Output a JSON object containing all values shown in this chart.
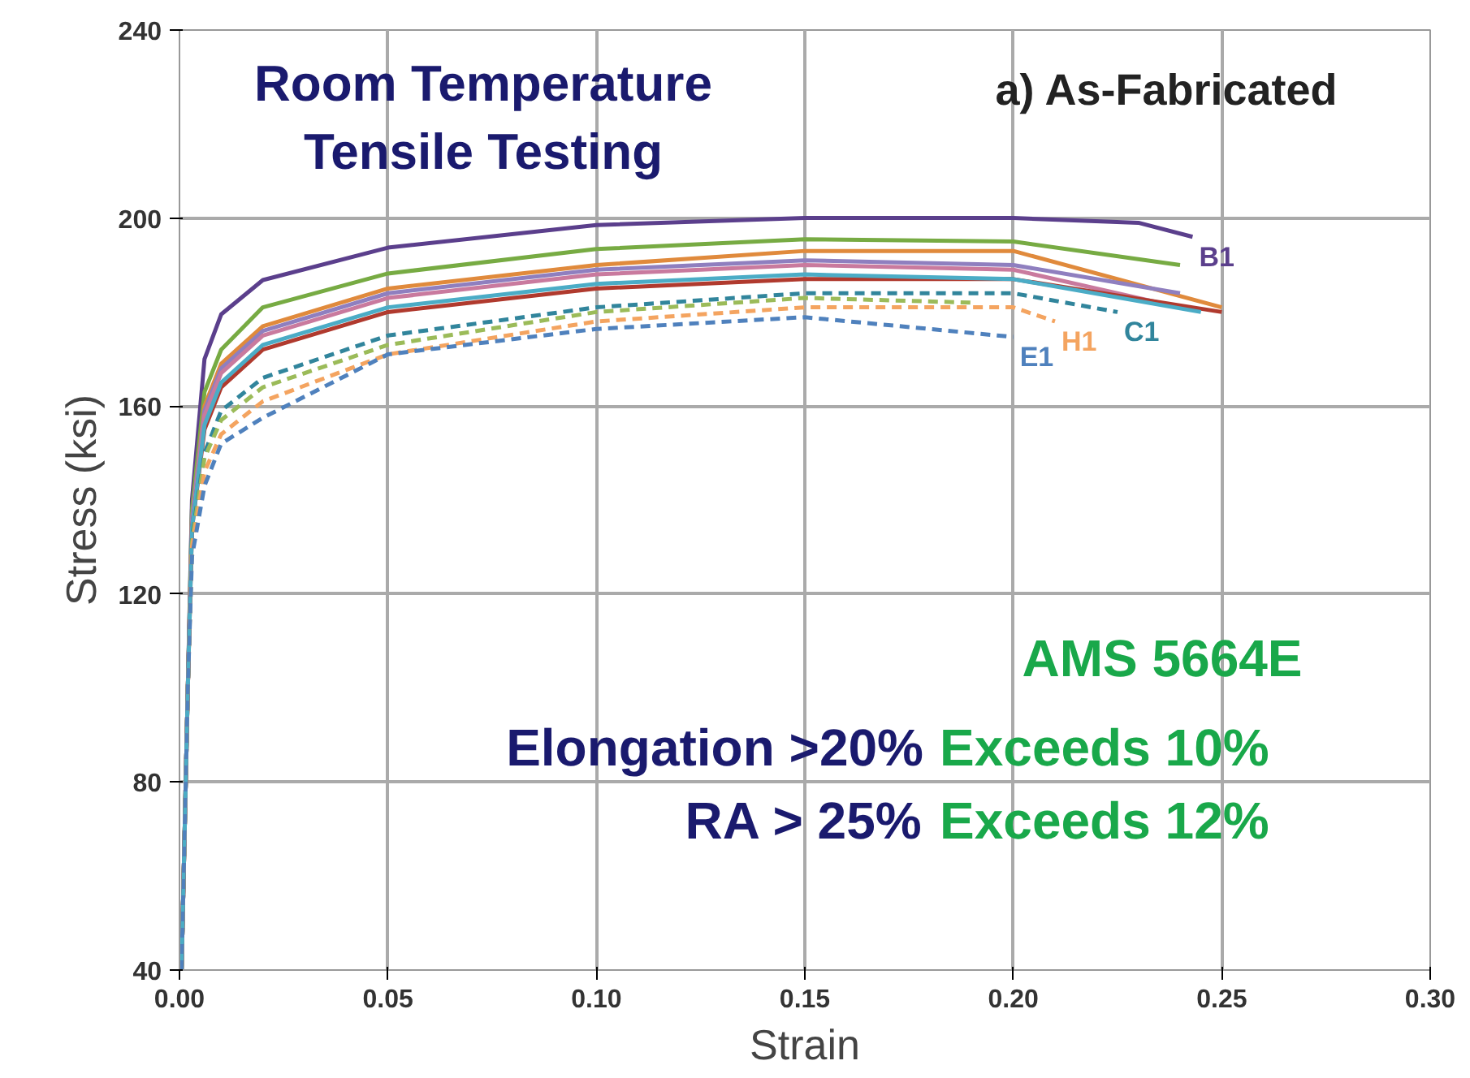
{
  "chart_data": {
    "type": "line",
    "xlabel": "Strain",
    "ylabel": "Stress (ksi)",
    "annotations": [
      "Room Temperature\nTensile Testing",
      "a) As-Fabricated",
      "AMS 5664E",
      "Elongation >20%",
      "Exceeds 10%",
      "RA > 25%",
      "Exceeds 12%"
    ],
    "xlim": [
      0,
      0.3
    ],
    "ylim": [
      40,
      240
    ],
    "xticks": [
      {
        "value": 0,
        "label": "0.00"
      },
      {
        "value": 0.05,
        "label": "0.05"
      },
      {
        "value": 0.1,
        "label": "0.10"
      },
      {
        "value": 0.15,
        "label": "0.15"
      },
      {
        "value": 0.2,
        "label": "0.20"
      },
      {
        "value": 0.25,
        "label": "0.25"
      },
      {
        "value": 0.3,
        "label": "0.30"
      }
    ],
    "yticks": [
      40,
      80,
      120,
      160,
      200,
      240
    ],
    "grid": true,
    "marker": "none",
    "series": [
      {
        "name": "B1",
        "color": "#5b3f8c",
        "line_style": "solid",
        "x": [
          0.0005,
          0.002,
          0.003,
          0.006,
          0.01,
          0.02,
          0.05,
          0.1,
          0.15,
          0.2,
          0.23,
          0.243
        ],
        "values": [
          40,
          100,
          140,
          170,
          179.5,
          186.8,
          193.7,
          198.5,
          200,
          200,
          199,
          196
        ]
      },
      {
        "color": "#77ab43",
        "line_style": "solid",
        "x": [
          0.0005,
          0.002,
          0.003,
          0.006,
          0.01,
          0.02,
          0.05,
          0.1,
          0.15,
          0.2,
          0.24
        ],
        "values": [
          40,
          100,
          138,
          163,
          172,
          181,
          188.2,
          193.4,
          195.5,
          195,
          190
        ]
      },
      {
        "color": "#e08a3c",
        "line_style": "solid",
        "x": [
          0.0005,
          0.002,
          0.003,
          0.006,
          0.01,
          0.02,
          0.05,
          0.1,
          0.15,
          0.2,
          0.25
        ],
        "values": [
          40,
          100,
          136,
          160,
          169,
          177,
          185,
          190,
          193,
          193,
          181
        ]
      },
      {
        "color": "#8f7fbf",
        "line_style": "solid",
        "x": [
          0.0005,
          0.002,
          0.003,
          0.006,
          0.01,
          0.02,
          0.05,
          0.1,
          0.15,
          0.2,
          0.24
        ],
        "values": [
          40,
          100,
          136,
          159,
          168,
          176,
          184,
          189,
          191,
          190,
          184
        ]
      },
      {
        "color": "#c97a9e",
        "line_style": "solid",
        "x": [
          0.0005,
          0.002,
          0.003,
          0.006,
          0.01,
          0.02,
          0.05,
          0.1,
          0.15,
          0.2,
          0.235
        ],
        "values": [
          40,
          100,
          135,
          158,
          167,
          175,
          183,
          188,
          190,
          189,
          182
        ]
      },
      {
        "color": "#b03a2e",
        "line_style": "solid",
        "x": [
          0.0005,
          0.002,
          0.003,
          0.006,
          0.01,
          0.02,
          0.05,
          0.1,
          0.15,
          0.2,
          0.25
        ],
        "values": [
          40,
          100,
          134,
          155,
          164,
          172,
          180,
          185,
          187,
          187,
          180
        ]
      },
      {
        "color": "#4bacc6",
        "line_style": "solid",
        "x": [
          0.0005,
          0.002,
          0.003,
          0.006,
          0.01,
          0.02,
          0.05,
          0.1,
          0.15,
          0.2,
          0.245
        ],
        "values": [
          40,
          100,
          134,
          156,
          165,
          173,
          181,
          186,
          188,
          187,
          180
        ]
      },
      {
        "name": "C1",
        "color": "#31859c",
        "line_style": "dashed",
        "x": [
          0.0005,
          0.002,
          0.003,
          0.006,
          0.01,
          0.02,
          0.05,
          0.1,
          0.15,
          0.2,
          0.225
        ],
        "values": [
          40,
          100,
          132,
          150,
          159,
          166,
          175,
          181,
          184,
          184,
          180
        ]
      },
      {
        "color": "#9bbb59",
        "line_style": "dashed",
        "x": [
          0.0005,
          0.002,
          0.003,
          0.006,
          0.01,
          0.02,
          0.05,
          0.1,
          0.15,
          0.19
        ],
        "values": [
          40,
          100,
          131,
          149,
          157,
          164,
          173,
          180,
          183,
          182
        ]
      },
      {
        "name": "H1",
        "color": "#f4a460",
        "line_style": "dashed",
        "x": [
          0.0005,
          0.002,
          0.003,
          0.006,
          0.01,
          0.02,
          0.05,
          0.1,
          0.15,
          0.2,
          0.21
        ],
        "values": [
          40,
          100,
          130,
          146,
          154,
          161,
          171,
          178,
          181,
          181,
          178
        ]
      },
      {
        "name": "E1",
        "color": "#4f81bd",
        "line_style": "dashed",
        "x": [
          0.0005,
          0.002,
          0.003,
          0.006,
          0.01,
          0.02,
          0.05,
          0.1,
          0.15,
          0.2
        ],
        "values": [
          40,
          100,
          128,
          143,
          152,
          157.5,
          171,
          176.4,
          178.9,
          174.7
        ]
      }
    ]
  }
}
